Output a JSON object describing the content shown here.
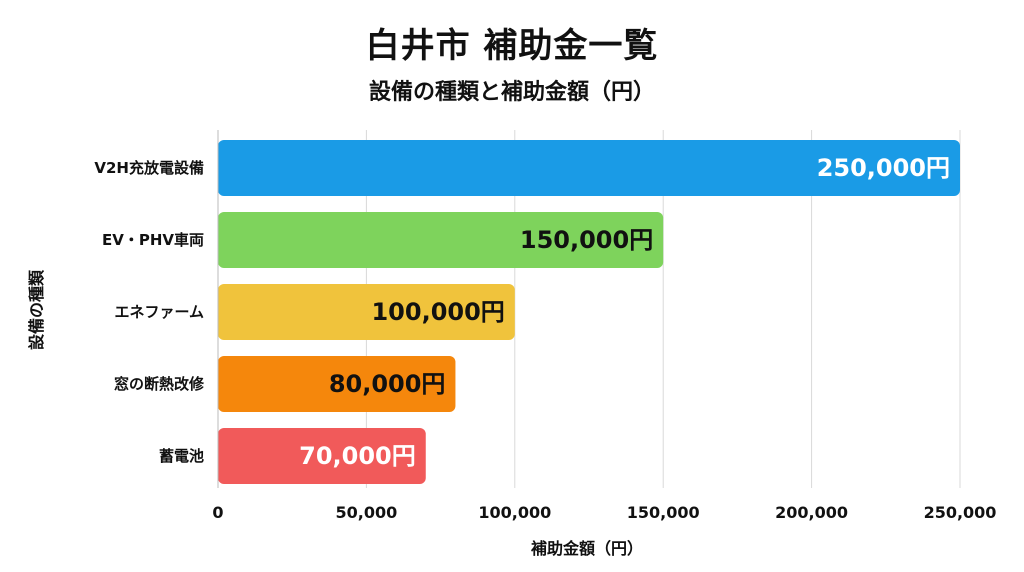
{
  "chart_data": {
    "type": "bar",
    "orientation": "horizontal",
    "title": "白井市 補助金一覧",
    "subtitle": "設備の種類と補助金額（円）",
    "xlabel": "補助金額（円）",
    "ylabel": "設備の種類",
    "categories": [
      "V2H充放電設備",
      "EV・PHV車両",
      "エネファーム",
      "窓の断熱改修",
      "蓄電池"
    ],
    "values": [
      250000,
      150000,
      100000,
      80000,
      70000
    ],
    "value_labels": [
      "250,000円",
      "150,000円",
      "100,000円",
      "80,000円",
      "70,000円"
    ],
    "colors": [
      "#1a9be6",
      "#7ed35c",
      "#f0c33c",
      "#f5870c",
      "#f15a5a"
    ],
    "value_label_colors": [
      "#ffffff",
      "#111111",
      "#111111",
      "#111111",
      "#ffffff"
    ],
    "xlim": [
      0,
      250000
    ],
    "xticks": [
      0,
      50000,
      100000,
      150000,
      200000,
      250000
    ],
    "xtick_labels": [
      "0",
      "50,000",
      "100,000",
      "150,000",
      "200,000",
      "250,000"
    ],
    "grid": "vertical",
    "grid_color": "#d9d9d9",
    "legend": "none"
  }
}
